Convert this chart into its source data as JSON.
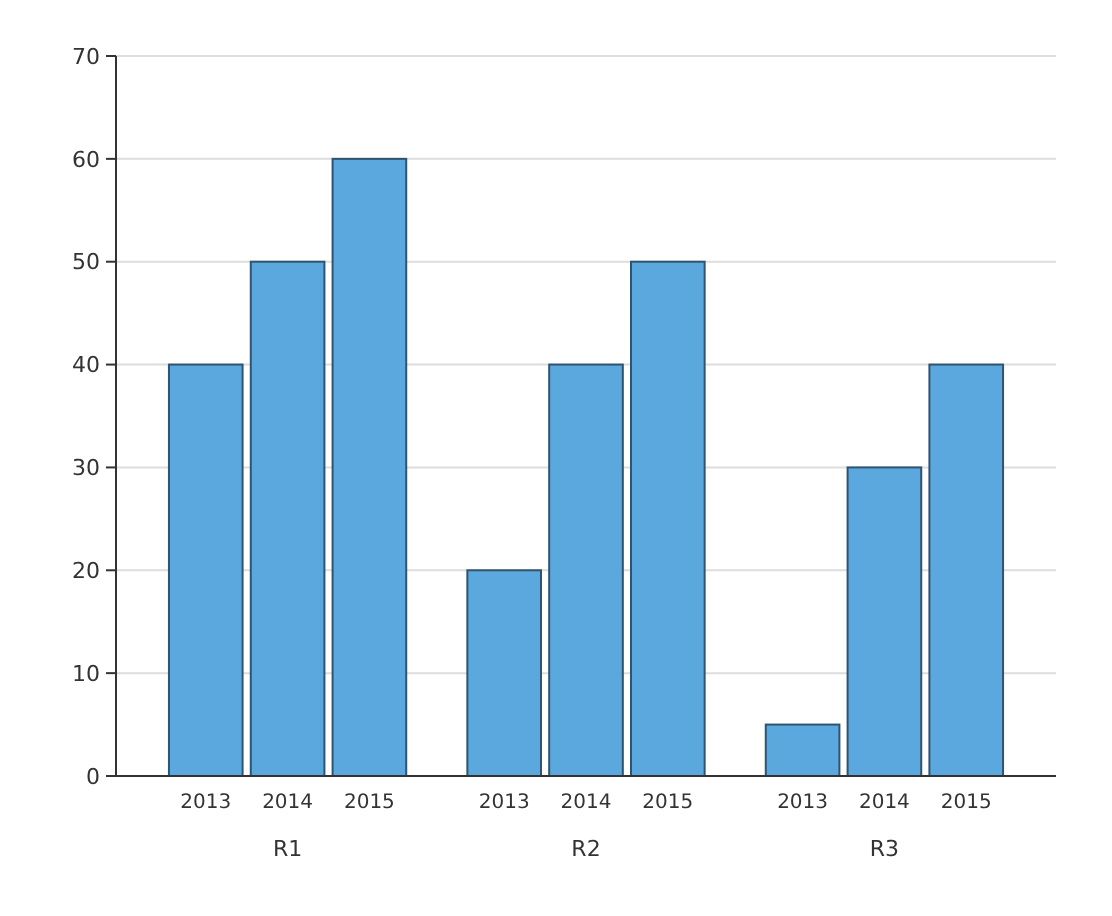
{
  "chart_data": {
    "type": "bar",
    "categories": [
      "R1",
      "R2",
      "R3"
    ],
    "series": [
      {
        "name": "2013",
        "color": "#5ba8de",
        "values": [
          40,
          20,
          5
        ]
      },
      {
        "name": "2014",
        "color": "#5ba8de",
        "values": [
          50,
          40,
          30
        ]
      },
      {
        "name": "2015",
        "color": "#5ba8de",
        "values": [
          60,
          50,
          40
        ]
      }
    ],
    "ylim": [
      0,
      70
    ],
    "yticks": [
      0,
      10,
      20,
      30,
      40,
      50,
      60,
      70
    ],
    "grid": "y"
  }
}
